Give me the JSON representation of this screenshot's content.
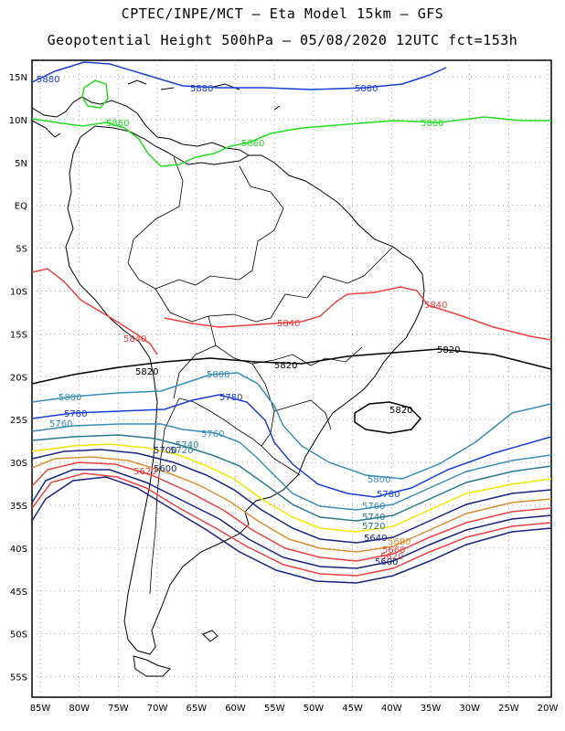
{
  "header": {
    "line1": "CPTEC/INPE/MCT –  Eta Model 15km – GFS",
    "line2": "Geopotential Height 500hPa – 05/08/2020 12UTC fct=153h"
  },
  "map": {
    "lat_labels": [
      "15N",
      "10N",
      "5N",
      "EQ",
      "5S",
      "10S",
      "15S",
      "20S",
      "25S",
      "30S",
      "35S",
      "40S",
      "45S",
      "50S",
      "55S"
    ],
    "lon_labels": [
      "85W",
      "80W",
      "75W",
      "70W",
      "65W",
      "60W",
      "55W",
      "50W",
      "45W",
      "40W",
      "35W",
      "30W",
      "25W",
      "20W"
    ],
    "contours": [
      {
        "value": "5880",
        "color": "#1a3fd8"
      },
      {
        "value": "5860",
        "color": "#22dd22"
      },
      {
        "value": "5840",
        "color": "#ee4040"
      },
      {
        "value": "5820",
        "color": "#000000"
      },
      {
        "value": "5800",
        "color": "#3b8db5"
      },
      {
        "value": "5780",
        "color": "#1a3fd8"
      },
      {
        "value": "5760",
        "color": "#3b8db5"
      },
      {
        "value": "5740",
        "color": "#2c7a90"
      },
      {
        "value": "5720",
        "color": "#f3e600"
      },
      {
        "value": "5700",
        "color": "#1a237e"
      },
      {
        "value": "5680",
        "color": "#d89030"
      },
      {
        "value": "5660",
        "color": "#ee4040"
      },
      {
        "value": "5640",
        "color": "#1a237e"
      },
      {
        "value": "5620",
        "color": "#ee4040"
      },
      {
        "value": "5600",
        "color": "#1a237e"
      }
    ],
    "label_texts": {
      "c5880a": "5880",
      "c5880b": "5880",
      "c5880c": "5880",
      "c5860a": "5860",
      "c5860b": "5860",
      "c5860c": "5860",
      "c5860d": "5860",
      "c5840a": "5840",
      "c5840b": "5840",
      "c5840c": "5840",
      "c5820a": "5820",
      "c5820b": "5820",
      "c5820c": "5820",
      "c5820d": "5820",
      "c5800a": "5800",
      "c5800b": "5800",
      "c5800c": "5800",
      "c5780a": "5780",
      "c5780b": "5780",
      "c5780c": "5780",
      "c5760a": "5760",
      "c5760b": "5760",
      "c5760c": "5760",
      "c5740a": "5740",
      "c5740b": "5740",
      "c5720a": "5720",
      "c5720b": "5720",
      "c5700a": "5700",
      "c5680a": "5680",
      "c5660a": "5660",
      "c5640a": "5640",
      "c5620a": "5620",
      "c5620b": "5620",
      "c5600a": "5600",
      "c5600b": "5600"
    }
  }
}
